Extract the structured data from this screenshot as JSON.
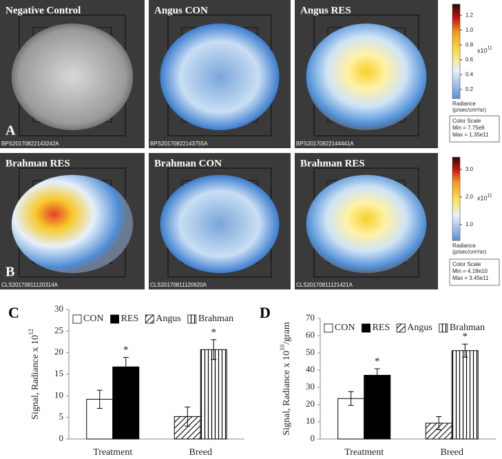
{
  "panels": [
    {
      "letter": "A",
      "images": [
        {
          "title": "Negative Control",
          "id": "BPS20170822143242A"
        },
        {
          "title": "Angus CON",
          "id": "BPS20170822143755A"
        },
        {
          "title": "Angus RES",
          "id": "BPS20170822144441A"
        }
      ],
      "colorbar": {
        "lim": [
          0.0775,
          1.35
        ],
        "ticks": [
          0.2,
          0.4,
          0.6,
          0.8,
          {
            "value": 1,
            "label": "1.0"
          },
          1.2
        ],
        "multiplier": "x10",
        "exponent": "11",
        "label": "Radiance",
        "unit": "(p/sec/cm²/sr)",
        "scale_title": "Color Scale",
        "min": "Min = 7.75e9",
        "max": "Max = 1.35e11"
      }
    },
    {
      "letter": "B",
      "images": [
        {
          "title": "Brahman RES",
          "id": "CLS20170811120314A"
        },
        {
          "title": "Brahman CON",
          "id": "CLS20170811120620A"
        },
        {
          "title": "Brahman RES",
          "id": "CLS20170811121421A"
        }
      ],
      "colorbar": {
        "lim": [
          0.418,
          3.45
        ],
        "ticks": [
          {
            "value": 1,
            "label": "1.0"
          },
          {
            "value": 2,
            "label": "2.0"
          },
          {
            "value": 3,
            "label": "3.0"
          }
        ],
        "multiplier": "x10",
        "exponent": "11",
        "label": "Radiance",
        "unit": "(p/sec/cm²/sr)",
        "scale_title": "Color Scale",
        "min": "Min = 4.18e10",
        "max": "Max = 3.45e11"
      }
    }
  ],
  "chart_data": [
    {
      "type": "bar",
      "letter": "C",
      "ylabel": "Signal, Radiance x 10",
      "ylabel_sup": "12",
      "categories": [
        "Treatment",
        "Breed"
      ],
      "series": [
        {
          "name": "CON",
          "color": "#ffffff",
          "pattern": "solid",
          "values": [
            9.2,
            null
          ],
          "errors": [
            2.1,
            null
          ]
        },
        {
          "name": "RES",
          "color": "#000000",
          "pattern": "solid",
          "values": [
            16.7,
            null
          ],
          "errors": [
            2.2,
            null
          ],
          "significance": "*"
        },
        {
          "name": "Angus",
          "color": "#000000",
          "pattern": "diagonal",
          "values": [
            null,
            5.2
          ],
          "errors": [
            null,
            2.2
          ]
        },
        {
          "name": "Brahman",
          "color": "#000000",
          "pattern": "vertical",
          "values": [
            null,
            20.7
          ],
          "errors": [
            null,
            2.3
          ],
          "significance": "*"
        }
      ],
      "ylim": [
        0,
        30
      ],
      "yticks": [
        0,
        5,
        10,
        15,
        20,
        25,
        30
      ]
    },
    {
      "type": "bar",
      "letter": "D",
      "ylabel": "Signal, Radiance x 10",
      "ylabel_sup": "10",
      "ylabel_suffix": "/gram",
      "categories": [
        "Treatment",
        "Breed"
      ],
      "series": [
        {
          "name": "CON",
          "color": "#ffffff",
          "pattern": "solid",
          "values": [
            23.5,
            null
          ],
          "errors": [
            4,
            null
          ]
        },
        {
          "name": "RES",
          "color": "#000000",
          "pattern": "solid",
          "values": [
            37,
            null
          ],
          "errors": [
            3.8,
            null
          ],
          "significance": "*"
        },
        {
          "name": "Angus",
          "color": "#000000",
          "pattern": "diagonal",
          "values": [
            null,
            9.2
          ],
          "errors": [
            null,
            3.8
          ]
        },
        {
          "name": "Brahman",
          "color": "#000000",
          "pattern": "vertical",
          "values": [
            null,
            51.3
          ],
          "errors": [
            null,
            3.8
          ],
          "significance": "*"
        }
      ],
      "ylim": [
        0,
        70
      ],
      "yticks": [
        0,
        10,
        20,
        30,
        40,
        50,
        60,
        70
      ]
    }
  ]
}
